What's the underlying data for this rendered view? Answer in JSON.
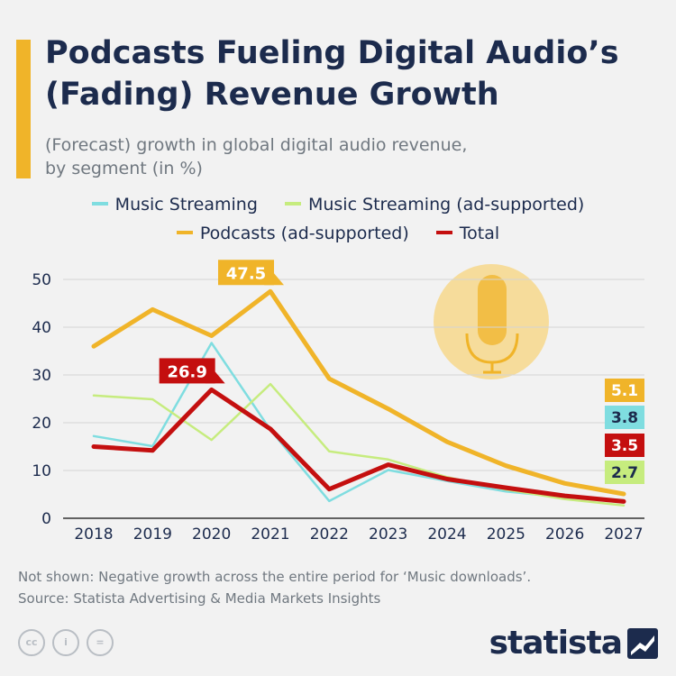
{
  "header": {
    "title": "Podcasts Fueling Digital Audio’s (Fading) Revenue Growth",
    "subtitle_line1": "(Forecast) growth in global digital audio revenue,",
    "subtitle_line2": "by segment (in %)"
  },
  "footer": {
    "note": "Not shown: Negative growth across the entire period for ‘Music downloads’.",
    "source": "Source: Statista Advertising & Media Markets Insights"
  },
  "logo": {
    "text": "statista"
  },
  "icons": [
    "cc-icon",
    "attribution-icon",
    "no-derivatives-icon",
    "microphone-icon"
  ],
  "colors": {
    "music_streaming": "#7fdde0",
    "music_streaming_ad": "#c6ec7e",
    "podcasts": "#f0b429",
    "total": "#c40f0f",
    "title": "#1c2b4d",
    "accent": "#f0b429"
  },
  "chart_data": {
    "type": "line",
    "x": [
      "2018",
      "2019",
      "2020",
      "2021",
      "2022",
      "2023",
      "2024",
      "2025",
      "2026",
      "2027"
    ],
    "ylim": [
      0,
      50
    ],
    "yticks": [
      "0",
      "10",
      "20",
      "30",
      "40",
      "50"
    ],
    "grid": true,
    "legend_position": "top",
    "series": [
      {
        "name": "Music Streaming",
        "color": "#7fdde0",
        "values": [
          17.2,
          15.1,
          36.7,
          18.5,
          3.6,
          10.1,
          7.8,
          5.6,
          4.4,
          3.8
        ]
      },
      {
        "name": "Music Streaming (ad-supported)",
        "color": "#c6ec7e",
        "values": [
          25.7,
          24.9,
          16.4,
          28.1,
          14.0,
          12.3,
          8.6,
          6.0,
          4.0,
          2.7
        ]
      },
      {
        "name": "Podcasts (ad-supported)",
        "color": "#f0b429",
        "values": [
          36.0,
          43.7,
          38.2,
          47.5,
          29.2,
          22.9,
          16.0,
          11.0,
          7.3,
          5.1
        ]
      },
      {
        "name": "Total",
        "color": "#c40f0f",
        "values": [
          15.0,
          14.2,
          26.9,
          18.7,
          6.1,
          11.2,
          8.2,
          6.4,
          4.7,
          3.5
        ]
      }
    ],
    "callouts": [
      {
        "series": 2,
        "index": 3,
        "text": "47.5"
      },
      {
        "series": 3,
        "index": 2,
        "text": "26.9"
      }
    ],
    "end_labels": [
      {
        "series": 2,
        "text": "5.1",
        "color": "#f0b429"
      },
      {
        "series": 0,
        "text": "3.8",
        "color": "#7fdde0"
      },
      {
        "series": 3,
        "text": "3.5",
        "color": "#c40f0f"
      },
      {
        "series": 1,
        "text": "2.7",
        "color": "#c6ec7e"
      }
    ]
  }
}
